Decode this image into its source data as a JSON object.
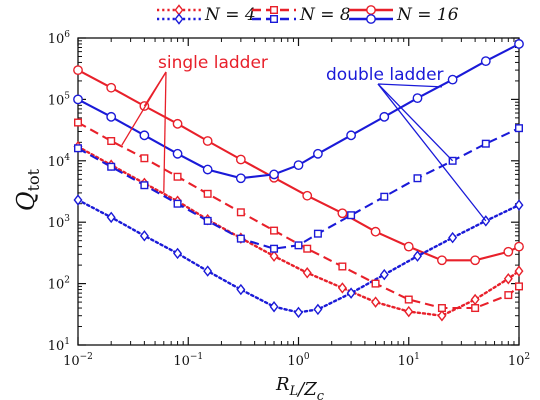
{
  "chart_data": {
    "type": "line",
    "title": "",
    "xlabel": "R_L/Z_c",
    "ylabel": "Q_tot",
    "x_scale": "log",
    "y_scale": "log",
    "xlim": [
      0.01,
      100
    ],
    "ylim": [
      10,
      1000000
    ],
    "x_ticks": [
      0.01,
      0.1,
      1,
      10,
      100
    ],
    "y_ticks": [
      10,
      100,
      1000,
      10000,
      100000,
      1000000
    ],
    "x_tick_labels": [
      {
        "base": "10",
        "exp": "−2"
      },
      {
        "base": "10",
        "exp": "−1"
      },
      {
        "base": "10",
        "exp": "0"
      },
      {
        "base": "10",
        "exp": "1"
      },
      {
        "base": "10",
        "exp": "2"
      }
    ],
    "y_tick_labels": [
      {
        "base": "10",
        "exp": "1"
      },
      {
        "base": "10",
        "exp": "2"
      },
      {
        "base": "10",
        "exp": "3"
      },
      {
        "base": "10",
        "exp": "4"
      },
      {
        "base": "10",
        "exp": "5"
      },
      {
        "base": "10",
        "exp": "6"
      }
    ],
    "grid": false,
    "legend": {
      "placement": "top-center",
      "entries": [
        {
          "label": "N = 4",
          "dash": "dotted",
          "marker": "diamond"
        },
        {
          "label": "N = 8",
          "dash": "dashed",
          "marker": "square"
        },
        {
          "label": "N = 16",
          "dash": "solid",
          "marker": "circle"
        }
      ]
    },
    "colors": {
      "single": "#e8202a",
      "double": "#1a1ad8"
    },
    "annotations": [
      {
        "text": "single ladder",
        "color": "#e8202a"
      },
      {
        "text": "double ladder",
        "color": "#1a1ad8"
      }
    ],
    "series": [
      {
        "family": "single",
        "N": 4,
        "dash": "dotted",
        "marker": "diamond",
        "x": [
          0.01,
          0.02,
          0.04,
          0.08,
          0.15,
          0.3,
          0.6,
          1.2,
          2.5,
          5,
          10,
          20,
          40,
          80,
          100
        ],
        "y": [
          17000,
          8500,
          4300,
          2200,
          1100,
          550,
          280,
          150,
          85,
          50,
          35,
          30,
          55,
          120,
          160
        ]
      },
      {
        "family": "single",
        "N": 8,
        "dash": "dashed",
        "marker": "square",
        "x": [
          0.01,
          0.02,
          0.04,
          0.08,
          0.15,
          0.3,
          0.6,
          1.2,
          2.5,
          5,
          10,
          20,
          40,
          80,
          100
        ],
        "y": [
          42000,
          21000,
          11000,
          5500,
          2900,
          1450,
          730,
          370,
          190,
          100,
          55,
          40,
          40,
          65,
          90
        ]
      },
      {
        "family": "single",
        "N": 16,
        "dash": "solid",
        "marker": "circle",
        "x": [
          0.01,
          0.02,
          0.04,
          0.08,
          0.15,
          0.3,
          0.6,
          1.2,
          2.5,
          5,
          10,
          20,
          40,
          80,
          100
        ],
        "y": [
          300000,
          155000,
          78000,
          40000,
          21000,
          10500,
          5300,
          2700,
          1400,
          700,
          400,
          240,
          240,
          330,
          400
        ]
      },
      {
        "family": "double",
        "N": 4,
        "dash": "dotted",
        "marker": "diamond",
        "x": [
          0.01,
          0.02,
          0.04,
          0.08,
          0.15,
          0.3,
          0.6,
          1,
          1.5,
          3,
          6,
          12,
          25,
          50,
          100
        ],
        "y": [
          2300,
          1200,
          600,
          310,
          160,
          80,
          42,
          34,
          38,
          70,
          140,
          280,
          560,
          1050,
          1900
        ]
      },
      {
        "family": "double",
        "N": 8,
        "dash": "dashed",
        "marker": "square",
        "x": [
          0.01,
          0.02,
          0.04,
          0.08,
          0.15,
          0.3,
          0.6,
          1,
          1.5,
          3,
          6,
          12,
          25,
          50,
          100
        ],
        "y": [
          16000,
          8000,
          4000,
          2000,
          1050,
          540,
          370,
          420,
          650,
          1300,
          2600,
          5200,
          10000,
          19000,
          34000
        ]
      },
      {
        "family": "double",
        "N": 16,
        "dash": "solid",
        "marker": "circle",
        "x": [
          0.01,
          0.02,
          0.04,
          0.08,
          0.15,
          0.3,
          0.6,
          1,
          1.5,
          3,
          6,
          12,
          25,
          50,
          100
        ],
        "y": [
          100000,
          52000,
          26000,
          13000,
          7200,
          5200,
          6000,
          8500,
          13000,
          26000,
          52000,
          105000,
          210000,
          420000,
          800000
        ]
      }
    ]
  }
}
